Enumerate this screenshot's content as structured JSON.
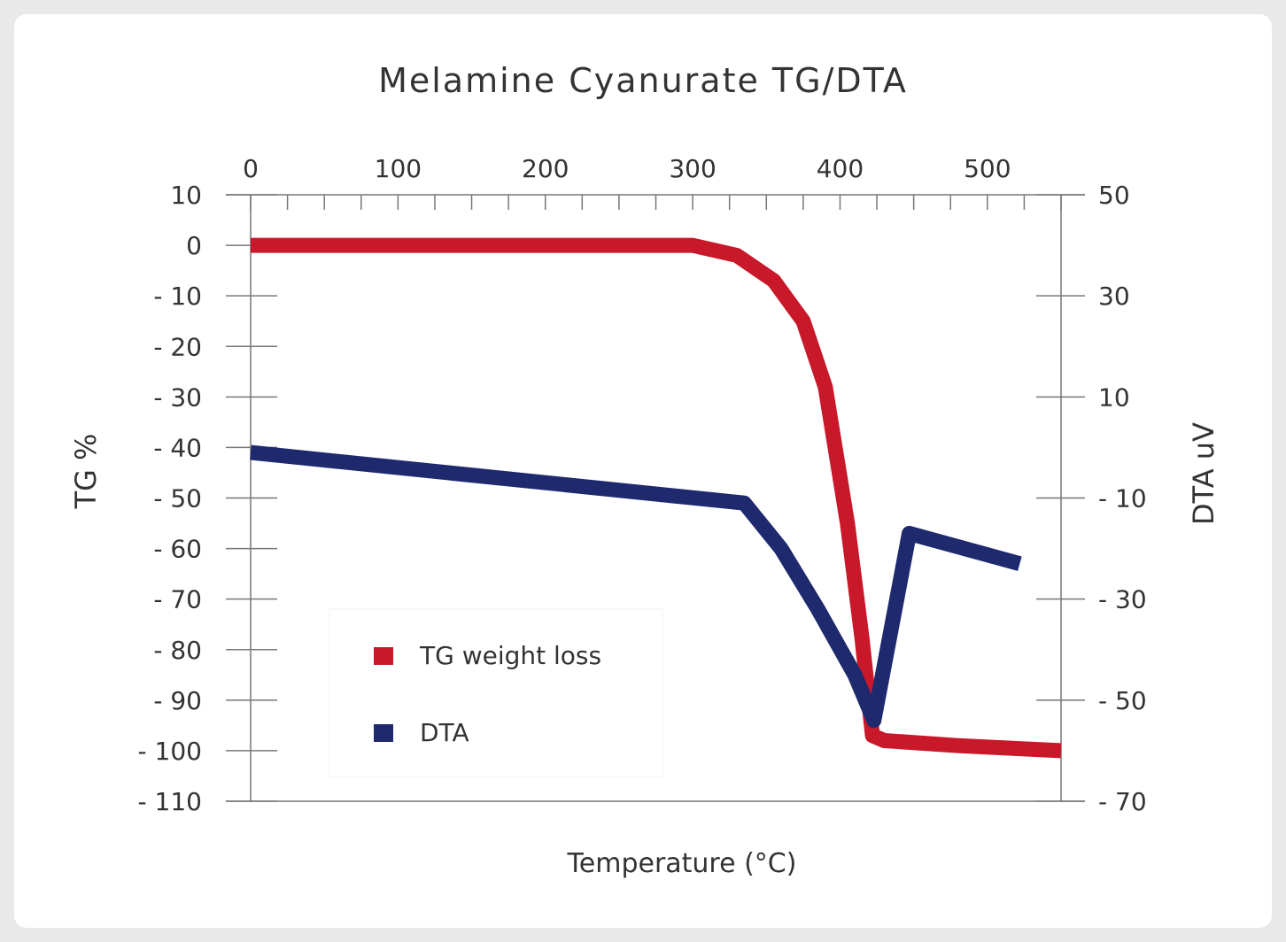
{
  "chart_data": {
    "type": "line",
    "title": "Melamine Cyanurate TG/DTA",
    "xlabel": "Temperature (°C)",
    "ylabel": "TG %",
    "y2label": "DTA uV",
    "xlim": [
      0,
      550
    ],
    "ylim": [
      -110,
      10
    ],
    "y2lim": [
      -70,
      50
    ],
    "xticks": [
      "0",
      "100",
      "200",
      "300",
      "400",
      "500"
    ],
    "yticks": [
      "10",
      "0",
      "- 10",
      "- 20",
      "- 30",
      "- 40",
      "- 50",
      "- 60",
      "- 70",
      "- 80",
      "- 90",
      "- 100",
      "- 110"
    ],
    "y2ticks": [
      "50",
      "30",
      "10",
      "- 10",
      "- 30",
      "- 50",
      "- 70"
    ],
    "grid": false,
    "legend_position": "bottom-left",
    "series": [
      {
        "name": "TG weight loss",
        "axis": "left",
        "color": "#c8182a",
        "x": [
          0,
          300,
          330,
          355,
          375,
          390,
          405,
          415,
          422,
          430,
          480,
          550
        ],
        "y": [
          0,
          0,
          -2,
          -7,
          -15,
          -28,
          -55,
          -78,
          -97,
          -98,
          -99,
          -100
        ]
      },
      {
        "name": "DTA",
        "axis": "right",
        "color": "#1f2a6e",
        "x": [
          0,
          335,
          360,
          385,
          410,
          423,
          447,
          522
        ],
        "y": [
          -1,
          -11,
          -20,
          -32,
          -45,
          -54,
          -17,
          -23
        ]
      }
    ]
  }
}
